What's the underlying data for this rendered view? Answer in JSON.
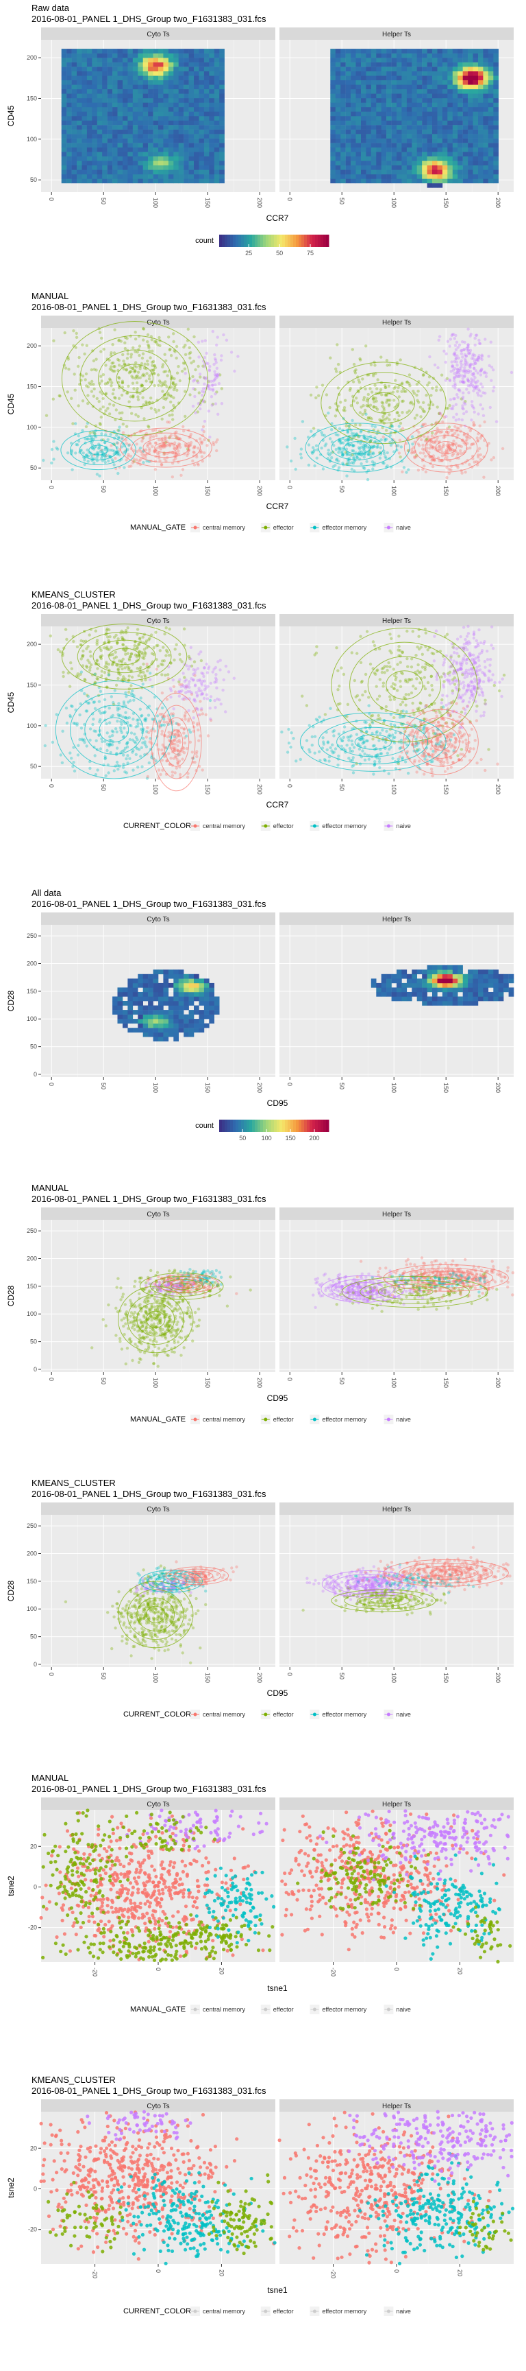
{
  "chart_data": [
    {
      "type": "heatmap",
      "title": "Raw data",
      "subtitle": "2016-08-01_PANEL 1_DHS_Group two_F1631383_031.fcs",
      "xlabel": "CCR7",
      "ylabel": "CD45",
      "panels": [
        "Cyto Ts",
        "Helper Ts"
      ],
      "xticks": [
        0,
        50,
        100,
        150,
        200
      ],
      "yticks": [
        50,
        100,
        150,
        200
      ],
      "xlim": [
        -10,
        215
      ],
      "ylim": [
        35,
        222
      ],
      "legend_title": "count",
      "legend_ticks": [
        25,
        50,
        75
      ],
      "legend_range": [
        1,
        90
      ],
      "colormap": [
        "#3b3187",
        "#2f6db0",
        "#2aa89f",
        "#9fd67a",
        "#f5e86b",
        "#f59a3f",
        "#d2224a",
        "#9e0142"
      ],
      "hotspots": [
        [
          {
            "x": 100,
            "y": 190,
            "level": 0.7
          },
          {
            "x": 105,
            "y": 70,
            "level": 0.25
          }
        ],
        [
          {
            "x": 175,
            "y": 175,
            "level": 1.0
          },
          {
            "x": 140,
            "y": 62,
            "level": 0.75
          }
        ]
      ]
    },
    {
      "type": "scatter",
      "title": "MANUAL",
      "subtitle": "2016-08-01_PANEL 1_DHS_Group two_F1631383_031.fcs",
      "xlabel": "CCR7",
      "ylabel": "CD45",
      "panels": [
        "Cyto Ts",
        "Helper Ts"
      ],
      "xticks": [
        0,
        50,
        100,
        150,
        200
      ],
      "yticks": [
        50,
        100,
        150,
        200
      ],
      "xlim": [
        -10,
        215
      ],
      "ylim": [
        35,
        222
      ],
      "legend_title": "MANUAL_GATE",
      "legend": [
        "central memory",
        "effector",
        "effector memory",
        "naive"
      ],
      "colors": [
        "#f8766d",
        "#7cae00",
        "#00bfc4",
        "#c77cff"
      ]
    },
    {
      "type": "scatter",
      "title": "KMEANS_CLUSTER",
      "subtitle": "2016-08-01_PANEL 1_DHS_Group two_F1631383_031.fcs",
      "xlabel": "CCR7",
      "ylabel": "CD45",
      "panels": [
        "Cyto Ts",
        "Helper Ts"
      ],
      "xticks": [
        0,
        50,
        100,
        150,
        200
      ],
      "yticks": [
        50,
        100,
        150,
        200
      ],
      "xlim": [
        -10,
        215
      ],
      "ylim": [
        35,
        222
      ],
      "legend_title": "CURRENT_COLOR",
      "legend": [
        "central memory",
        "effector",
        "effector memory",
        "naive"
      ],
      "colors": [
        "#f8766d",
        "#7cae00",
        "#00bfc4",
        "#c77cff"
      ]
    },
    {
      "type": "heatmap",
      "title": "All data",
      "subtitle": "2016-08-01_PANEL 1_DHS_Group two_F1631383_031.fcs",
      "xlabel": "CD95",
      "ylabel": "CD28",
      "panels": [
        "Cyto Ts",
        "Helper Ts"
      ],
      "xticks": [
        0,
        50,
        100,
        150,
        200
      ],
      "yticks": [
        0,
        50,
        100,
        150,
        200,
        250
      ],
      "xlim": [
        -10,
        215
      ],
      "ylim": [
        -5,
        270
      ],
      "legend_title": "count",
      "legend_ticks": [
        50,
        100,
        150,
        200
      ],
      "legend_range": [
        1,
        230
      ],
      "colormap": [
        "#3b3187",
        "#2f6db0",
        "#2aa89f",
        "#9fd67a",
        "#f5e86b",
        "#f59a3f",
        "#d2224a",
        "#9e0142"
      ],
      "hotspots": [
        [
          {
            "x": 135,
            "y": 160,
            "level": 0.5
          },
          {
            "x": 100,
            "y": 95,
            "level": 0.3
          }
        ],
        [
          {
            "x": 150,
            "y": 170,
            "level": 1.0
          }
        ]
      ]
    },
    {
      "type": "scatter",
      "title": "MANUAL",
      "subtitle": "2016-08-01_PANEL 1_DHS_Group two_F1631383_031.fcs",
      "xlabel": "CD95",
      "ylabel": "CD28",
      "panels": [
        "Cyto Ts",
        "Helper Ts"
      ],
      "xticks": [
        0,
        50,
        100,
        150,
        200
      ],
      "yticks": [
        0,
        50,
        100,
        150,
        200,
        250
      ],
      "xlim": [
        -10,
        215
      ],
      "ylim": [
        -5,
        270
      ],
      "legend_title": "MANUAL_GATE",
      "legend": [
        "central memory",
        "effector",
        "effector memory",
        "naive"
      ],
      "colors": [
        "#f8766d",
        "#7cae00",
        "#00bfc4",
        "#c77cff"
      ]
    },
    {
      "type": "scatter",
      "title": "KMEANS_CLUSTER",
      "subtitle": "2016-08-01_PANEL 1_DHS_Group two_F1631383_031.fcs",
      "xlabel": "CD95",
      "ylabel": "CD28",
      "panels": [
        "Cyto Ts",
        "Helper Ts"
      ],
      "xticks": [
        0,
        50,
        100,
        150,
        200
      ],
      "yticks": [
        0,
        50,
        100,
        150,
        200,
        250
      ],
      "xlim": [
        -10,
        215
      ],
      "ylim": [
        -5,
        270
      ],
      "legend_title": "CURRENT_COLOR",
      "legend": [
        "central memory",
        "effector",
        "effector memory",
        "naive"
      ],
      "colors": [
        "#f8766d",
        "#7cae00",
        "#00bfc4",
        "#c77cff"
      ]
    },
    {
      "type": "scatter",
      "title": "MANUAL",
      "subtitle": "2016-08-01_PANEL 1_DHS_Group two_F1631383_031.fcs",
      "xlabel": "tsne1",
      "ylabel": "tsne2",
      "panels": [
        "Cyto Ts",
        "Helper Ts"
      ],
      "xticks": [
        -20,
        0,
        20
      ],
      "yticks": [
        -20,
        0,
        20
      ],
      "xlim": [
        -37,
        37
      ],
      "ylim": [
        -37,
        38
      ],
      "legend_title": "MANUAL_GATE",
      "legend": [
        "central memory",
        "effector",
        "effector memory",
        "naive"
      ],
      "colors": [
        "#f8766d",
        "#7cae00",
        "#00bfc4",
        "#c77cff"
      ]
    },
    {
      "type": "scatter",
      "title": "KMEANS_CLUSTER",
      "subtitle": "2016-08-01_PANEL 1_DHS_Group two_F1631383_031.fcs",
      "xlabel": "tsne1",
      "ylabel": "tsne2",
      "panels": [
        "Cyto Ts",
        "Helper Ts"
      ],
      "xticks": [
        -20,
        0,
        20
      ],
      "yticks": [
        -20,
        0,
        20
      ],
      "xlim": [
        -37,
        37
      ],
      "ylim": [
        -37,
        38
      ],
      "legend_title": "CURRENT_COLOR",
      "legend": [
        "central memory",
        "effector",
        "effector memory",
        "naive"
      ],
      "colors": [
        "#f8766d",
        "#7cae00",
        "#00bfc4",
        "#c77cff"
      ]
    }
  ]
}
